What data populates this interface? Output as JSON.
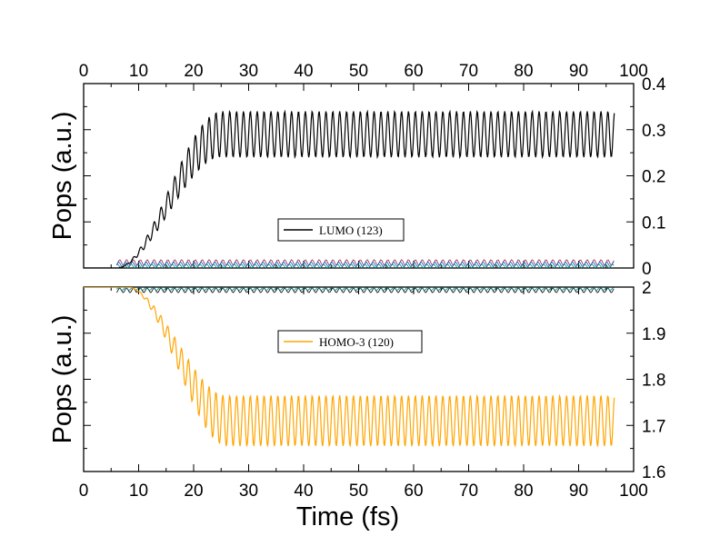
{
  "chart_data": [
    {
      "type": "line",
      "panel": "top",
      "xlabel": "",
      "ylabel": "Pops (a.u.)",
      "xlim": [
        0,
        100
      ],
      "ylim": [
        0,
        0.4
      ],
      "x_ticks": [
        "0",
        "10",
        "20",
        "30",
        "40",
        "50",
        "60",
        "70",
        "80",
        "90",
        "100"
      ],
      "y_ticks": [
        "0",
        "0.1",
        "0.2",
        "0.3",
        "0.4"
      ],
      "x_tick_labels_position": "top",
      "y_tick_labels_position": "right",
      "grid": false,
      "legend": {
        "position": "center",
        "entries": [
          {
            "label": "LUMO (123)",
            "color": "#000000"
          }
        ]
      },
      "series": [
        {
          "name": "LUMO (123)",
          "color": "#000000",
          "t_end": 96.5,
          "rise_start": 6,
          "rise_mid": 17,
          "rise_end": 25,
          "plateau": 0.29,
          "oscillation_amplitude": 0.05,
          "oscillation_period": 1.25
        }
      ],
      "minor_lines": [
        {
          "color": "#a02050",
          "level": 0.012,
          "amplitude": 0.006
        },
        {
          "color": "#0060c0",
          "level": 0.008,
          "amplitude": 0.005
        },
        {
          "color": "#008080",
          "level": 0.004,
          "amplitude": 0.004
        }
      ]
    },
    {
      "type": "line",
      "panel": "bottom",
      "xlabel": "Time (fs)",
      "ylabel": "Pops (a.u.)",
      "xlim": [
        0,
        100
      ],
      "ylim": [
        1.6,
        2.0
      ],
      "x_ticks": [
        "0",
        "10",
        "20",
        "30",
        "40",
        "50",
        "60",
        "70",
        "80",
        "90",
        "100"
      ],
      "y_ticks": [
        "1.6",
        "1.7",
        "1.8",
        "1.9",
        "2"
      ],
      "x_tick_labels_position": "bottom",
      "y_tick_labels_position": "right",
      "grid": false,
      "legend": {
        "position": "upper-center",
        "entries": [
          {
            "label": "HOMO-3 (120)",
            "color": "#ffa500"
          }
        ]
      },
      "series": [
        {
          "name": "HOMO-3 (120)",
          "color": "#ffa500",
          "t_end": 96.5,
          "rise_start": 8,
          "rise_mid": 17,
          "rise_end": 26,
          "start": 2.0,
          "plateau": 1.71,
          "oscillation_amplitude": 0.055,
          "oscillation_period": 1.25
        }
      ],
      "minor_lines": [
        {
          "color": "#000000",
          "level": 1.993,
          "amplitude": 0.005
        },
        {
          "color": "#008080",
          "level": 1.996,
          "amplitude": 0.003
        }
      ]
    }
  ]
}
